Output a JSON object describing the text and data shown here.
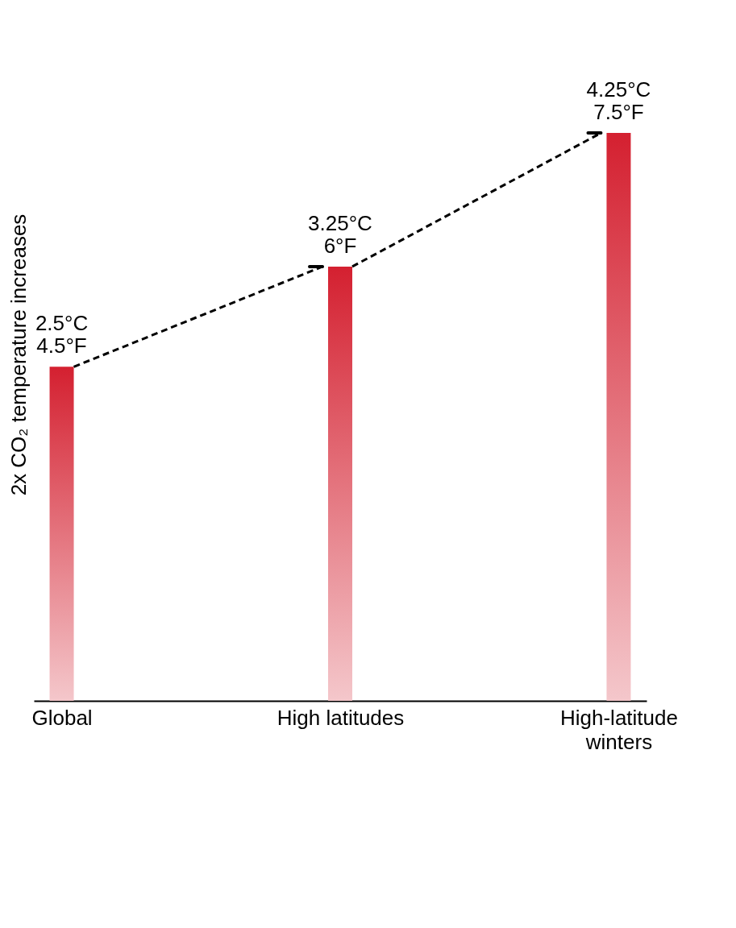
{
  "chart_data": {
    "type": "bar",
    "ylabel": "2x CO₂ temperature increases",
    "categories": [
      "Global",
      "High latitudes",
      "High-latitude winters"
    ],
    "values": [
      2.5,
      3.25,
      4.25
    ],
    "value_labels": [
      "2.5°C\n4.5°F",
      "3.25°C\n6°F",
      "4.25°C\n7.5°F"
    ],
    "color": "#d42030",
    "grid": false
  }
}
